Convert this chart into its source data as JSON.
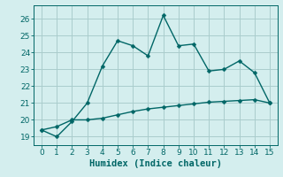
{
  "xlabel": "Humidex (Indice chaleur)",
  "x": [
    0,
    1,
    2,
    3,
    4,
    5,
    6,
    7,
    8,
    9,
    10,
    11,
    12,
    13,
    14,
    15
  ],
  "y_spiky": [
    19.4,
    19.0,
    19.9,
    21.0,
    23.2,
    24.7,
    24.4,
    23.8,
    26.2,
    24.4,
    24.5,
    22.9,
    23.0,
    23.5,
    22.8,
    21.0
  ],
  "y_smooth": [
    19.4,
    19.6,
    20.0,
    20.0,
    20.1,
    20.3,
    20.5,
    20.65,
    20.75,
    20.85,
    20.95,
    21.05,
    21.1,
    21.15,
    21.2,
    21.0
  ],
  "line_color": "#006666",
  "bg_color": "#d4eeee",
  "grid_color": "#aacccc",
  "xlim": [
    -0.5,
    15.5
  ],
  "ylim": [
    18.5,
    26.8
  ],
  "yticks": [
    19,
    20,
    21,
    22,
    23,
    24,
    25,
    26
  ],
  "xticks": [
    0,
    1,
    2,
    3,
    4,
    5,
    6,
    7,
    8,
    9,
    10,
    11,
    12,
    13,
    14,
    15
  ],
  "markersize": 2.5,
  "linewidth": 1.0,
  "tick_fontsize": 6.5,
  "xlabel_fontsize": 7.5
}
